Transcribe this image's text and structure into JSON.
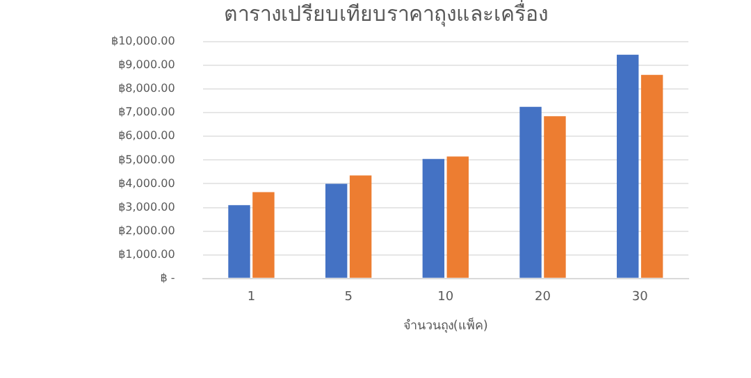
{
  "chart_data": {
    "type": "bar",
    "title": "ตารางเปรียบเทียบราคาถุงและเครื่อง",
    "xlabel": "จำนวนถุง(แพ็ค)",
    "categories": [
      "1",
      "5",
      "10",
      "20",
      "30"
    ],
    "series": [
      {
        "color": "#4472c4",
        "values": [
          3100,
          4000,
          5050,
          7250,
          9450
        ]
      },
      {
        "color": "#ed7d31",
        "values": [
          3650,
          4350,
          5150,
          6850,
          8600
        ]
      }
    ],
    "ylim": [
      0,
      10000
    ],
    "yticks": [
      {
        "value": 0,
        "label": "฿ -"
      },
      {
        "value": 1000,
        "label": "฿1,000.00"
      },
      {
        "value": 2000,
        "label": "฿2,000.00"
      },
      {
        "value": 3000,
        "label": "฿3,000.00"
      },
      {
        "value": 4000,
        "label": "฿4,000.00"
      },
      {
        "value": 5000,
        "label": "฿5,000.00"
      },
      {
        "value": 6000,
        "label": "฿6,000.00"
      },
      {
        "value": 7000,
        "label": "฿7,000.00"
      },
      {
        "value": 8000,
        "label": "฿8,000.00"
      },
      {
        "value": 9000,
        "label": "฿9,000.00"
      },
      {
        "value": 10000,
        "label": "฿10,000.00"
      }
    ],
    "grid": "y"
  }
}
